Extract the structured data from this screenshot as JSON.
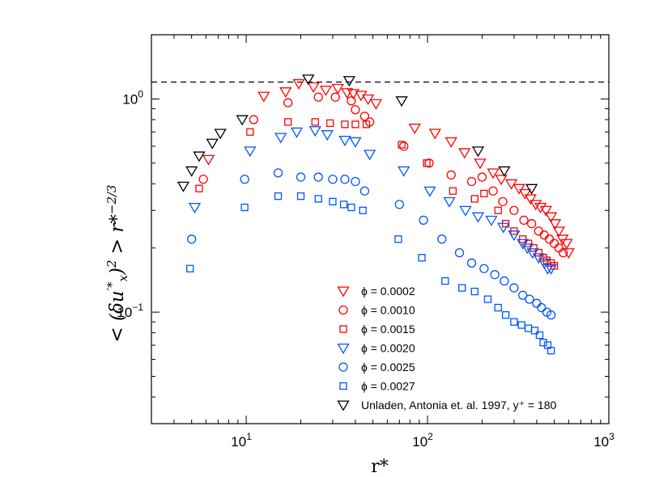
{
  "chart_data": {
    "type": "scatter",
    "xscale": "log",
    "yscale": "log",
    "xlim": [
      3,
      1000
    ],
    "ylim": [
      0.03,
      2.0
    ],
    "xlabel": "r*",
    "ylabel": "< (δu'*_x)^2 > r*^-2/3",
    "x_ticks": [
      {
        "value": 10,
        "base": "10",
        "exp": "1"
      },
      {
        "value": 100,
        "base": "10",
        "exp": "2"
      },
      {
        "value": 1000,
        "base": "10",
        "exp": "3"
      }
    ],
    "y_ticks": [
      {
        "value": 0.1,
        "base": "10",
        "exp": "−1"
      },
      {
        "value": 1.0,
        "label": "10",
        "suffix": "0"
      }
    ],
    "reference_line": {
      "y": 1.2,
      "style": "dashed"
    },
    "legend_position": "bottom-right",
    "series": [
      {
        "name": "ϕ = 0.0002",
        "marker": "triangle-down",
        "color": "#ff0000",
        "points": [
          [
            6.2,
            0.52
          ],
          [
            12.5,
            1.03
          ],
          [
            16.5,
            1.08
          ],
          [
            19.5,
            1.18
          ],
          [
            23.5,
            1.14
          ],
          [
            27.5,
            1.1
          ],
          [
            32,
            1.12
          ],
          [
            36,
            1.07
          ],
          [
            39,
            1.06
          ],
          [
            43,
            1.04
          ],
          [
            47,
            1.0
          ],
          [
            52,
            0.95
          ],
          [
            85,
            0.73
          ],
          [
            110,
            0.69
          ],
          [
            135,
            0.63
          ],
          [
            160,
            0.56
          ],
          [
            195,
            0.5
          ],
          [
            230,
            0.45
          ],
          [
            255,
            0.42
          ],
          [
            290,
            0.4
          ],
          [
            320,
            0.38
          ],
          [
            345,
            0.36
          ],
          [
            370,
            0.34
          ],
          [
            395,
            0.32
          ],
          [
            420,
            0.31
          ],
          [
            450,
            0.3
          ],
          [
            480,
            0.28
          ],
          [
            505,
            0.26
          ],
          [
            530,
            0.24
          ],
          [
            555,
            0.22
          ],
          [
            585,
            0.21
          ],
          [
            600,
            0.19
          ]
        ]
      },
      {
        "name": "ϕ = 0.0010",
        "marker": "circle",
        "color": "#ff0000",
        "points": [
          [
            5.8,
            0.42
          ],
          [
            11,
            0.8
          ],
          [
            17,
            0.96
          ],
          [
            25,
            1.02
          ],
          [
            31,
            1.02
          ],
          [
            38,
            0.98
          ],
          [
            40,
            0.89
          ],
          [
            45,
            0.83
          ],
          [
            48,
            0.78
          ],
          [
            74,
            0.6
          ],
          [
            102,
            0.5
          ],
          [
            135,
            0.44
          ],
          [
            175,
            0.41
          ],
          [
            200,
            0.43
          ],
          [
            230,
            0.37
          ],
          [
            260,
            0.33
          ],
          [
            300,
            0.3
          ],
          [
            340,
            0.27
          ],
          [
            375,
            0.26
          ],
          [
            410,
            0.24
          ],
          [
            440,
            0.23
          ],
          [
            470,
            0.22
          ],
          [
            500,
            0.21
          ],
          [
            530,
            0.2
          ],
          [
            560,
            0.19
          ]
        ]
      },
      {
        "name": "ϕ = 0.0015",
        "marker": "square",
        "color": "#ff0000",
        "points": [
          [
            5.5,
            0.38
          ],
          [
            10.5,
            0.7
          ],
          [
            17,
            0.78
          ],
          [
            24,
            0.78
          ],
          [
            29,
            0.77
          ],
          [
            35,
            0.76
          ],
          [
            40,
            0.76
          ],
          [
            46,
            0.76
          ],
          [
            72,
            0.61
          ],
          [
            99,
            0.5
          ],
          [
            138,
            0.37
          ],
          [
            182,
            0.34
          ],
          [
            205,
            0.36
          ],
          [
            245,
            0.3
          ],
          [
            270,
            0.26
          ],
          [
            300,
            0.24
          ],
          [
            335,
            0.22
          ],
          [
            360,
            0.21
          ],
          [
            385,
            0.2
          ],
          [
            410,
            0.19
          ],
          [
            435,
            0.18
          ],
          [
            455,
            0.175
          ],
          [
            480,
            0.17
          ],
          [
            500,
            0.165
          ]
        ]
      },
      {
        "name": "ϕ = 0.0020",
        "marker": "triangle-down",
        "color": "#0055ff",
        "points": [
          [
            5.2,
            0.31
          ],
          [
            10.5,
            0.57
          ],
          [
            15.5,
            0.66
          ],
          [
            19,
            0.7
          ],
          [
            24,
            0.71
          ],
          [
            28,
            0.68
          ],
          [
            35,
            0.64
          ],
          [
            40,
            0.63
          ],
          [
            48,
            0.55
          ],
          [
            74,
            0.46
          ],
          [
            103,
            0.37
          ],
          [
            132,
            0.33
          ],
          [
            162,
            0.3
          ],
          [
            190,
            0.28
          ],
          [
            225,
            0.27
          ],
          [
            262,
            0.25
          ],
          [
            300,
            0.23
          ],
          [
            335,
            0.21
          ],
          [
            355,
            0.2
          ],
          [
            380,
            0.19
          ],
          [
            410,
            0.18
          ],
          [
            440,
            0.17
          ],
          [
            460,
            0.16
          ],
          [
            480,
            0.16
          ]
        ]
      },
      {
        "name": "ϕ = 0.0025",
        "marker": "circle",
        "color": "#0055ff",
        "points": [
          [
            5,
            0.22
          ],
          [
            9.8,
            0.42
          ],
          [
            15,
            0.45
          ],
          [
            20,
            0.43
          ],
          [
            25,
            0.43
          ],
          [
            30,
            0.42
          ],
          [
            35,
            0.42
          ],
          [
            40,
            0.41
          ],
          [
            45,
            0.37
          ],
          [
            70,
            0.32
          ],
          [
            95,
            0.27
          ],
          [
            120,
            0.22
          ],
          [
            150,
            0.19
          ],
          [
            175,
            0.17
          ],
          [
            205,
            0.16
          ],
          [
            235,
            0.15
          ],
          [
            265,
            0.14
          ],
          [
            300,
            0.13
          ],
          [
            335,
            0.12
          ],
          [
            365,
            0.115
          ],
          [
            400,
            0.11
          ],
          [
            425,
            0.105
          ],
          [
            455,
            0.1
          ],
          [
            480,
            0.097
          ]
        ]
      },
      {
        "name": "ϕ = 0.0027",
        "marker": "square",
        "color": "#0055ff",
        "points": [
          [
            4.9,
            0.16
          ],
          [
            9.8,
            0.31
          ],
          [
            15,
            0.35
          ],
          [
            20,
            0.35
          ],
          [
            25,
            0.34
          ],
          [
            30,
            0.33
          ],
          [
            34.5,
            0.32
          ],
          [
            38,
            0.31
          ],
          [
            44,
            0.3
          ],
          [
            69,
            0.22
          ],
          [
            93,
            0.18
          ],
          [
            125,
            0.14
          ],
          [
            155,
            0.13
          ],
          [
            182,
            0.125
          ],
          [
            215,
            0.115
          ],
          [
            245,
            0.105
          ],
          [
            270,
            0.097
          ],
          [
            300,
            0.09
          ],
          [
            330,
            0.087
          ],
          [
            360,
            0.084
          ],
          [
            390,
            0.082
          ],
          [
            415,
            0.078
          ],
          [
            435,
            0.072
          ],
          [
            460,
            0.07
          ],
          [
            480,
            0.066
          ]
        ]
      },
      {
        "name": "Unladen, Antonia et. al. 1997, y⁺ = 180",
        "marker": "triangle-down",
        "color": "#000000",
        "points": [
          [
            4.5,
            0.39
          ],
          [
            5,
            0.46
          ],
          [
            5.5,
            0.54
          ],
          [
            6.5,
            0.62
          ],
          [
            7.2,
            0.69
          ],
          [
            9.5,
            0.8
          ],
          [
            22,
            1.24
          ],
          [
            37,
            1.22
          ],
          [
            72,
            0.98
          ],
          [
            190,
            0.57
          ],
          [
            265,
            0.46
          ],
          [
            375,
            0.38
          ]
        ]
      }
    ]
  }
}
